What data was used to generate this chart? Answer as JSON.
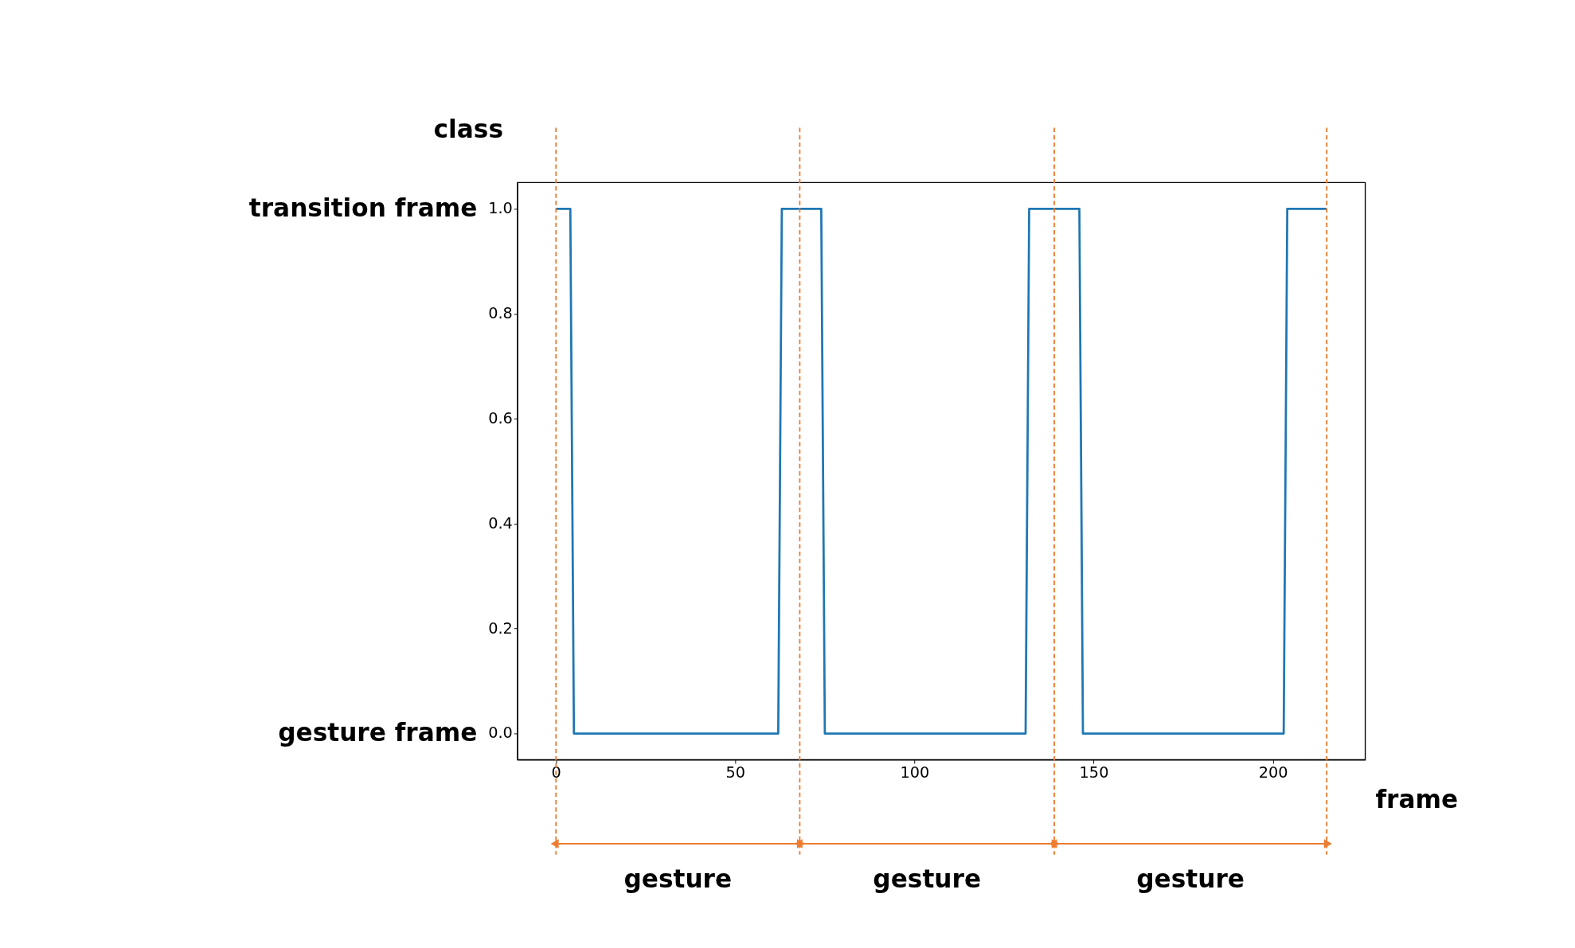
{
  "chart_data": {
    "type": "line",
    "xlabel": "frame",
    "ylabel": "class",
    "x": [
      0,
      4,
      5,
      62,
      63,
      74,
      75,
      131,
      132,
      146,
      147,
      203,
      204,
      215
    ],
    "series": [
      {
        "color": "#1f77b4",
        "values": [
          1,
          1,
          0,
          0,
          1,
          1,
          0,
          0,
          1,
          1,
          0,
          0,
          1,
          1
        ]
      }
    ],
    "xlim": [
      -10.75,
      225.75
    ],
    "ylim": [
      -0.05,
      1.05
    ],
    "xticks": [
      0,
      50,
      100,
      150,
      200
    ],
    "yticks": [
      {
        "value": 0,
        "label": "0.0"
      },
      {
        "value": 0.2,
        "label": "0.2"
      },
      {
        "value": 0.4,
        "label": "0.4"
      },
      {
        "value": 0.6,
        "label": "0.6"
      },
      {
        "value": 0.8,
        "label": "0.8"
      },
      {
        "value": 1,
        "label": "1.0"
      }
    ],
    "grid": false,
    "marker": "none",
    "line_style": "solid",
    "ref_lines": [
      {
        "axis": "x",
        "value": 0,
        "color": "#ed7d31",
        "line_style": "dashed"
      },
      {
        "axis": "x",
        "value": 68,
        "color": "#ed7d31",
        "line_style": "dashed"
      },
      {
        "axis": "x",
        "value": 139,
        "color": "#ed7d31",
        "line_style": "dashed"
      },
      {
        "axis": "x",
        "value": 215,
        "color": "#ed7d31",
        "line_style": "dashed"
      }
    ],
    "annotations": [
      "transition frame",
      "gesture frame",
      "gesture",
      "gesture",
      "gesture"
    ]
  }
}
